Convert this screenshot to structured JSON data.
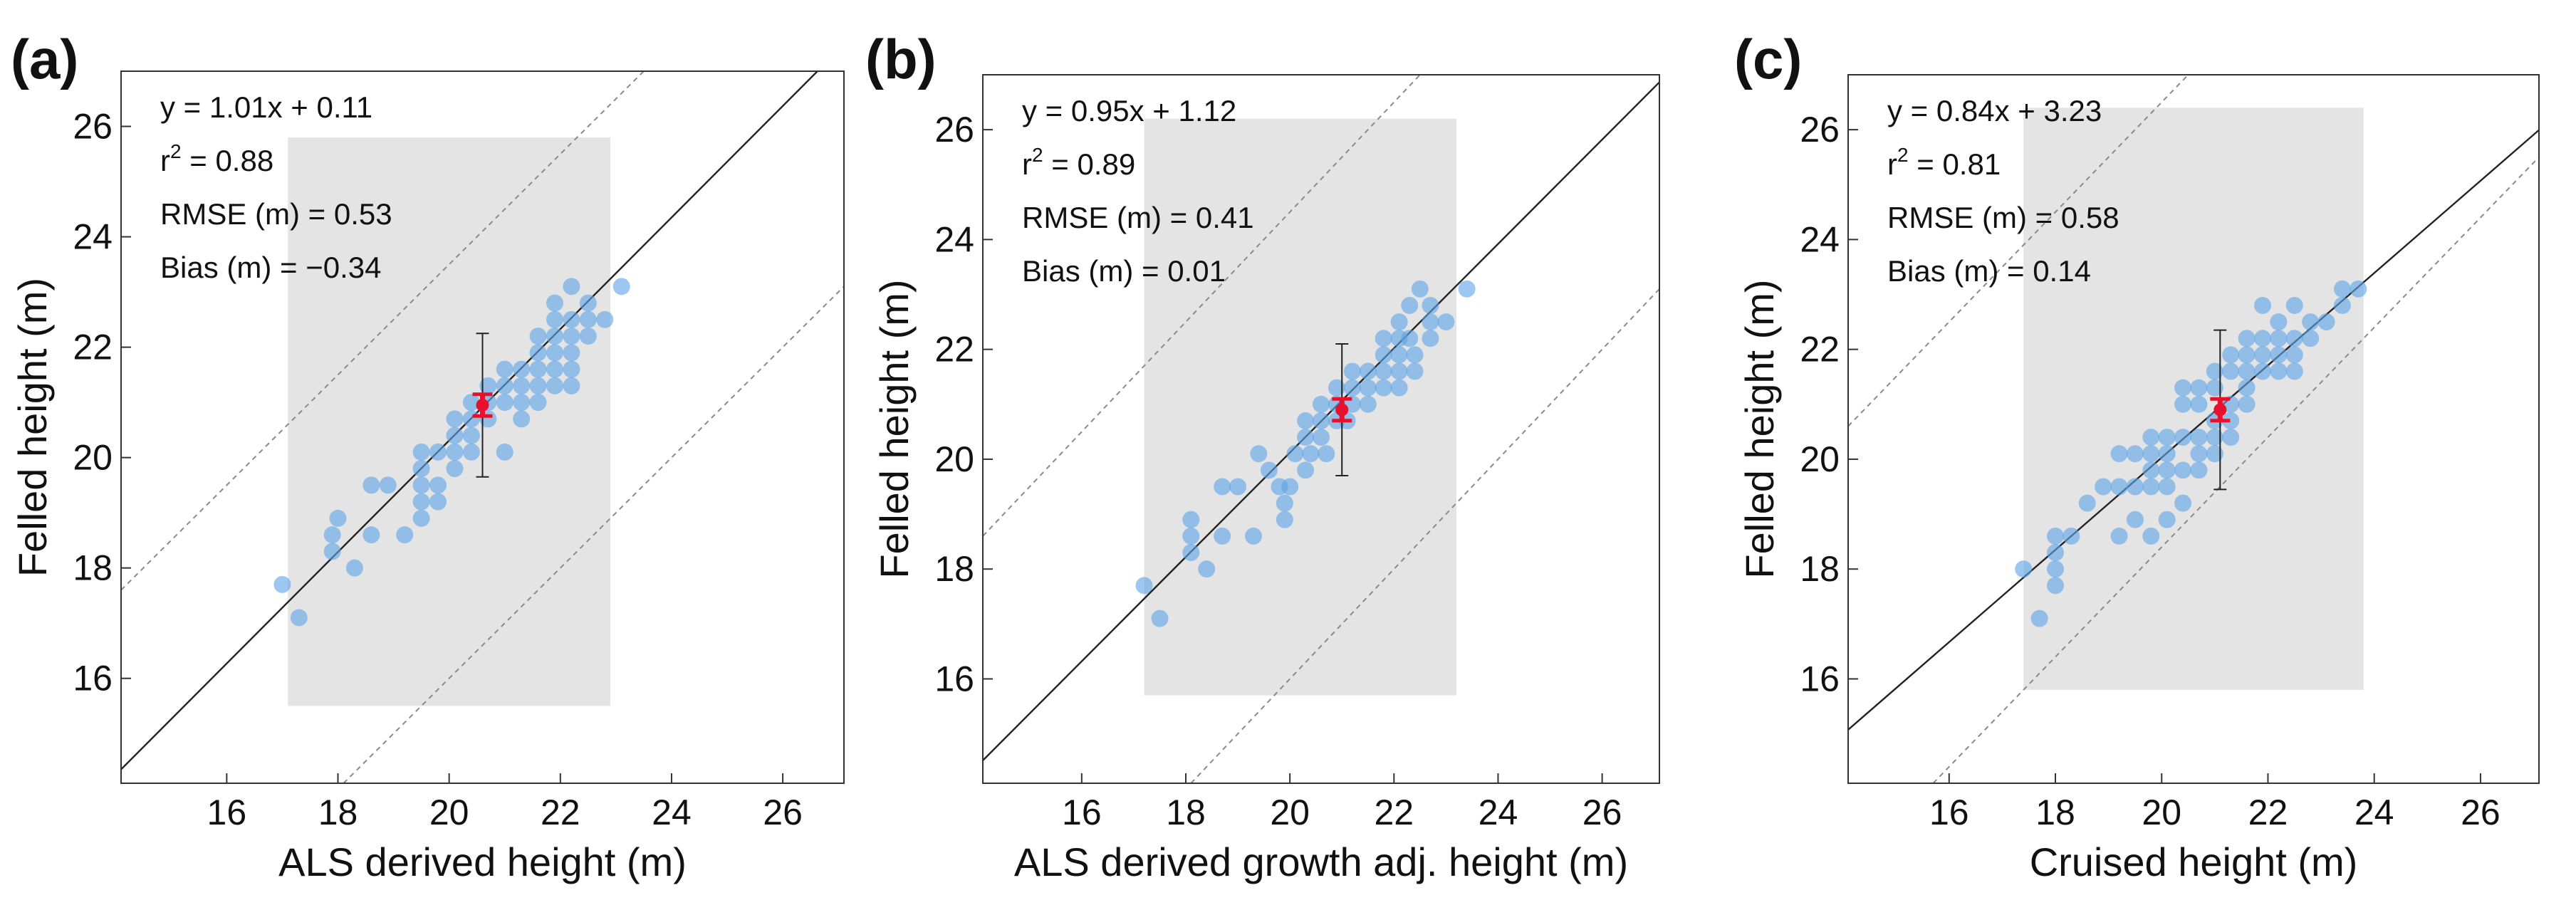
{
  "figure": {
    "colors": {
      "point": "#5ea4e6",
      "mean_marker": "#e8112d",
      "shaded_region": "#e4e4e4",
      "regression_line": "#222222",
      "bound_lines": "#8a8a8a",
      "axes": "#333333"
    }
  },
  "chart_data": [
    {
      "type": "scatter",
      "panel_label": "(a)",
      "xlabel": "ALS derived height (m)",
      "ylabel": "Felled height (m)",
      "xlim": [
        14.1,
        27.1
      ],
      "ylim": [
        14.1,
        27.0
      ],
      "xticks": [
        16,
        18,
        20,
        22,
        24,
        26
      ],
      "yticks": [
        16,
        18,
        20,
        22,
        24,
        26
      ],
      "stats": {
        "equation": "y = 1.01x + 0.11",
        "r2_prefix": "r",
        "r2_sup": "2",
        "r2_value": " = 0.88",
        "rmse": "RMSE (m) = 0.53",
        "bias": "Bias (m) = −0.34"
      },
      "regression": {
        "slope": 1.01,
        "intercept": 0.11
      },
      "bounds": [
        {
          "slope": 1.0,
          "intercept": 3.5
        },
        {
          "slope": 1.0,
          "intercept": -4.0
        }
      ],
      "shaded_region": {
        "x": [
          17.1,
          22.9
        ],
        "y": [
          15.5,
          25.8
        ]
      },
      "mean_point": {
        "x": 20.6,
        "y": 20.95,
        "error": 1.3,
        "sem": 0.12
      },
      "points": [
        [
          17.0,
          17.7
        ],
        [
          17.3,
          17.1
        ],
        [
          18.0,
          18.9
        ],
        [
          17.9,
          18.6
        ],
        [
          17.9,
          18.3
        ],
        [
          18.3,
          18.0
        ],
        [
          18.6,
          19.5
        ],
        [
          18.6,
          18.6
        ],
        [
          18.9,
          19.5
        ],
        [
          19.2,
          18.6
        ],
        [
          19.5,
          20.1
        ],
        [
          19.5,
          19.8
        ],
        [
          19.5,
          19.5
        ],
        [
          19.5,
          19.2
        ],
        [
          19.5,
          18.9
        ],
        [
          19.8,
          20.1
        ],
        [
          19.8,
          19.5
        ],
        [
          19.8,
          19.2
        ],
        [
          20.1,
          20.7
        ],
        [
          20.1,
          20.4
        ],
        [
          20.1,
          20.1
        ],
        [
          20.1,
          19.8
        ],
        [
          20.4,
          21.0
        ],
        [
          20.4,
          20.7
        ],
        [
          20.4,
          20.4
        ],
        [
          20.4,
          20.1
        ],
        [
          20.7,
          21.3
        ],
        [
          20.7,
          21.0
        ],
        [
          20.7,
          20.7
        ],
        [
          21.0,
          21.6
        ],
        [
          21.0,
          21.3
        ],
        [
          21.0,
          21.0
        ],
        [
          21.0,
          20.1
        ],
        [
          21.3,
          21.6
        ],
        [
          21.3,
          21.3
        ],
        [
          21.3,
          21.0
        ],
        [
          21.3,
          20.7
        ],
        [
          21.6,
          22.2
        ],
        [
          21.6,
          21.9
        ],
        [
          21.6,
          21.6
        ],
        [
          21.6,
          21.3
        ],
        [
          21.6,
          21.0
        ],
        [
          21.9,
          22.2
        ],
        [
          21.9,
          21.9
        ],
        [
          21.9,
          21.6
        ],
        [
          21.9,
          21.3
        ],
        [
          22.2,
          22.5
        ],
        [
          22.2,
          22.2
        ],
        [
          22.2,
          21.9
        ],
        [
          22.2,
          21.6
        ],
        [
          22.2,
          21.3
        ],
        [
          21.9,
          22.5
        ],
        [
          21.9,
          22.8
        ],
        [
          22.2,
          23.1
        ],
        [
          22.5,
          22.8
        ],
        [
          22.5,
          22.5
        ],
        [
          22.5,
          22.2
        ],
        [
          22.8,
          22.5
        ],
        [
          23.1,
          23.1
        ]
      ]
    },
    {
      "type": "scatter",
      "panel_label": "(b)",
      "xlabel": "ALS derived growth adj. height (m)",
      "ylabel": "Felled height (m)",
      "xlim": [
        14.1,
        27.1
      ],
      "ylim": [
        14.1,
        27.0
      ],
      "xticks": [
        16,
        18,
        20,
        22,
        24,
        26
      ],
      "yticks": [
        16,
        18,
        20,
        22,
        24,
        26
      ],
      "stats": {
        "equation": "y = 0.95x + 1.12",
        "r2_prefix": "r",
        "r2_sup": "2",
        "r2_value": " = 0.89",
        "rmse": "RMSE (m) = 0.41",
        "bias": "Bias (m) = 0.01"
      },
      "regression": {
        "slope": 0.95,
        "intercept": 1.12
      },
      "bounds": [
        {
          "slope": 1.0,
          "intercept": 4.5
        },
        {
          "slope": 1.0,
          "intercept": -4.0
        }
      ],
      "shaded_region": {
        "x": [
          17.2,
          23.2
        ],
        "y": [
          15.7,
          26.2
        ]
      },
      "mean_point": {
        "x": 21.0,
        "y": 20.9,
        "error": 1.2,
        "sem": 0.12
      },
      "points": [
        [
          17.2,
          17.7
        ],
        [
          17.5,
          17.1
        ],
        [
          18.1,
          18.9
        ],
        [
          18.1,
          18.6
        ],
        [
          18.1,
          18.3
        ],
        [
          18.4,
          18.0
        ],
        [
          18.7,
          19.5
        ],
        [
          18.7,
          18.6
        ],
        [
          19.0,
          19.5
        ],
        [
          19.3,
          18.6
        ],
        [
          19.4,
          20.1
        ],
        [
          19.6,
          19.8
        ],
        [
          19.8,
          19.5
        ],
        [
          19.9,
          19.2
        ],
        [
          19.9,
          18.9
        ],
        [
          20.1,
          20.1
        ],
        [
          20.0,
          19.5
        ],
        [
          20.3,
          20.7
        ],
        [
          20.3,
          20.4
        ],
        [
          20.4,
          20.1
        ],
        [
          20.3,
          19.8
        ],
        [
          20.6,
          21.0
        ],
        [
          20.6,
          20.7
        ],
        [
          20.6,
          20.4
        ],
        [
          20.7,
          20.1
        ],
        [
          20.9,
          21.3
        ],
        [
          20.9,
          21.0
        ],
        [
          20.9,
          20.7
        ],
        [
          21.2,
          21.6
        ],
        [
          21.2,
          21.3
        ],
        [
          21.2,
          21.0
        ],
        [
          21.1,
          20.7
        ],
        [
          21.5,
          21.6
        ],
        [
          21.5,
          21.3
        ],
        [
          21.5,
          21.0
        ],
        [
          21.8,
          22.2
        ],
        [
          21.8,
          21.9
        ],
        [
          21.8,
          21.6
        ],
        [
          21.8,
          21.3
        ],
        [
          22.1,
          22.2
        ],
        [
          22.1,
          21.9
        ],
        [
          22.1,
          21.6
        ],
        [
          22.1,
          21.3
        ],
        [
          22.1,
          22.5
        ],
        [
          22.3,
          22.2
        ],
        [
          22.4,
          21.9
        ],
        [
          22.4,
          21.6
        ],
        [
          22.3,
          22.8
        ],
        [
          22.5,
          23.1
        ],
        [
          22.7,
          22.8
        ],
        [
          22.7,
          22.5
        ],
        [
          22.7,
          22.2
        ],
        [
          23.0,
          22.5
        ],
        [
          23.4,
          23.1
        ]
      ]
    },
    {
      "type": "scatter",
      "panel_label": "(c)",
      "xlabel": "Cruised height (m)",
      "ylabel": "Felled height (m)",
      "xlim": [
        14.1,
        27.1
      ],
      "ylim": [
        14.1,
        27.0
      ],
      "xticks": [
        16,
        18,
        20,
        22,
        24,
        26
      ],
      "yticks": [
        16,
        18,
        20,
        22,
        24,
        26
      ],
      "stats": {
        "equation": "y = 0.84x + 3.23",
        "r2_prefix": "r",
        "r2_sup": "2",
        "r2_value": " = 0.81",
        "rmse": "RMSE (m) = 0.58",
        "bias": "Bias (m) = 0.14"
      },
      "regression": {
        "slope": 0.84,
        "intercept": 3.23
      },
      "bounds": [
        {
          "slope": 1.0,
          "intercept": 6.5
        },
        {
          "slope": 1.0,
          "intercept": -1.6
        }
      ],
      "shaded_region": {
        "x": [
          17.4,
          23.8
        ],
        "y": [
          15.8,
          26.4
        ]
      },
      "mean_point": {
        "x": 21.1,
        "y": 20.9,
        "error": 1.45,
        "sem": 0.12
      },
      "points": [
        [
          17.4,
          18.0
        ],
        [
          17.7,
          17.1
        ],
        [
          18.0,
          18.6
        ],
        [
          18.0,
          18.3
        ],
        [
          18.0,
          18.0
        ],
        [
          18.0,
          17.7
        ],
        [
          18.3,
          18.6
        ],
        [
          18.6,
          19.2
        ],
        [
          18.9,
          19.5
        ],
        [
          19.2,
          20.1
        ],
        [
          19.2,
          19.5
        ],
        [
          19.2,
          18.6
        ],
        [
          19.5,
          20.1
        ],
        [
          19.5,
          19.5
        ],
        [
          19.5,
          18.9
        ],
        [
          19.8,
          20.4
        ],
        [
          19.8,
          20.1
        ],
        [
          19.8,
          19.8
        ],
        [
          19.8,
          19.5
        ],
        [
          19.8,
          18.6
        ],
        [
          20.1,
          20.4
        ],
        [
          20.1,
          20.1
        ],
        [
          20.1,
          19.8
        ],
        [
          20.1,
          19.5
        ],
        [
          20.1,
          18.9
        ],
        [
          20.4,
          21.3
        ],
        [
          20.4,
          21.0
        ],
        [
          20.4,
          20.4
        ],
        [
          20.4,
          19.8
        ],
        [
          20.4,
          19.2
        ],
        [
          20.7,
          21.3
        ],
        [
          20.7,
          21.0
        ],
        [
          20.7,
          20.4
        ],
        [
          20.7,
          20.1
        ],
        [
          20.7,
          19.8
        ],
        [
          21.0,
          21.6
        ],
        [
          21.0,
          21.3
        ],
        [
          21.0,
          20.7
        ],
        [
          21.0,
          20.4
        ],
        [
          21.0,
          20.1
        ],
        [
          21.3,
          21.9
        ],
        [
          21.3,
          21.6
        ],
        [
          21.3,
          21.0
        ],
        [
          21.3,
          20.7
        ],
        [
          21.3,
          20.4
        ],
        [
          21.6,
          22.2
        ],
        [
          21.6,
          21.9
        ],
        [
          21.6,
          21.6
        ],
        [
          21.6,
          21.3
        ],
        [
          21.6,
          21.0
        ],
        [
          21.9,
          22.8
        ],
        [
          21.9,
          22.2
        ],
        [
          21.9,
          21.9
        ],
        [
          21.9,
          21.6
        ],
        [
          22.2,
          22.5
        ],
        [
          22.2,
          22.2
        ],
        [
          22.2,
          21.9
        ],
        [
          22.2,
          21.6
        ],
        [
          22.5,
          22.8
        ],
        [
          22.5,
          22.2
        ],
        [
          22.5,
          21.9
        ],
        [
          22.5,
          21.6
        ],
        [
          22.8,
          22.5
        ],
        [
          22.8,
          22.2
        ],
        [
          23.1,
          22.5
        ],
        [
          23.4,
          22.8
        ],
        [
          23.4,
          23.1
        ],
        [
          23.7,
          23.1
        ]
      ]
    }
  ]
}
